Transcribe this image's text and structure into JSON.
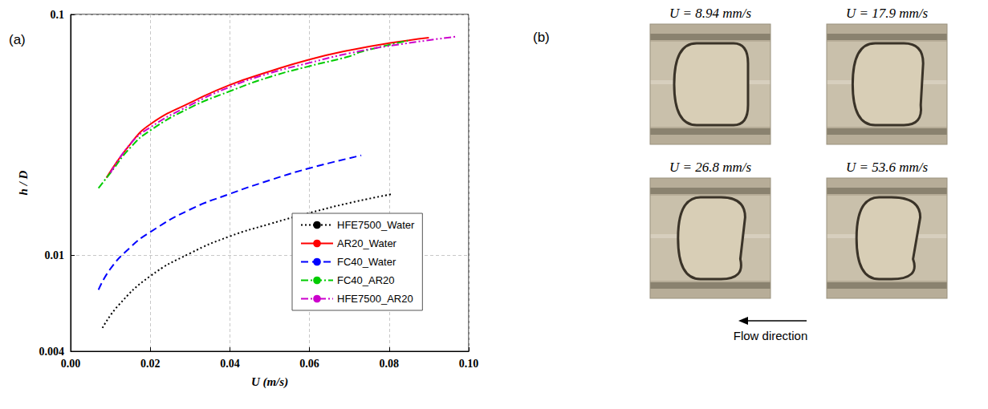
{
  "chart_data": {
    "type": "line",
    "title": "(a)",
    "x_label": "U (m/s)",
    "y_label": "h / D",
    "log": "y",
    "grid": true,
    "legend": "bottom-right",
    "xlim": [
      0,
      0.1
    ],
    "xticks": [
      {
        "value": 0,
        "label": "0.00"
      },
      {
        "value": 0.02,
        "label": "0.02"
      },
      {
        "value": 0.04,
        "label": "0.04"
      },
      {
        "value": 0.06,
        "label": "0.06"
      },
      {
        "value": 0.08,
        "label": "0.08"
      },
      {
        "value": 0.1,
        "label": "0.10"
      }
    ],
    "ylim": [
      0.004,
      0.1
    ],
    "yticks": [
      0.004,
      0.01,
      0.1
    ],
    "series": [
      {
        "name": "HFE7500_Water",
        "color": "#000000",
        "line_style": "dotted",
        "x": [
          0.008,
          0.012,
          0.02,
          0.03,
          0.04,
          0.05,
          0.06,
          0.07,
          0.081
        ],
        "values": [
          0.005,
          0.0062,
          0.0082,
          0.0102,
          0.012,
          0.0135,
          0.015,
          0.0165,
          0.018
        ]
      },
      {
        "name": "AR20_Water",
        "color": "#ff0000",
        "line_style": "solid",
        "x": [
          0.009,
          0.015,
          0.02,
          0.03,
          0.04,
          0.05,
          0.06,
          0.07,
          0.08,
          0.09
        ],
        "values": [
          0.021,
          0.029,
          0.035,
          0.043,
          0.051,
          0.058,
          0.065,
          0.071,
          0.076,
          0.08
        ]
      },
      {
        "name": "FC40_Water",
        "color": "#0000ff",
        "line_style": "dashed",
        "x": [
          0.007,
          0.01,
          0.015,
          0.02,
          0.03,
          0.04,
          0.05,
          0.06,
          0.073
        ],
        "values": [
          0.0072,
          0.0088,
          0.0108,
          0.0125,
          0.0155,
          0.018,
          0.0205,
          0.023,
          0.026
        ]
      },
      {
        "name": "FC40_AR20",
        "color": "#00cc00",
        "line_style": "dashdot",
        "x": [
          0.007,
          0.01,
          0.015,
          0.02,
          0.03,
          0.04,
          0.05,
          0.06,
          0.07,
          0.073,
          0.085
        ],
        "values": [
          0.019,
          0.022,
          0.028,
          0.033,
          0.041,
          0.048,
          0.055,
          0.061,
          0.067,
          0.07,
          0.078
        ]
      },
      {
        "name": "HFE7500_AR20",
        "color": "#cc00cc",
        "line_style": "dashdotdot",
        "x": [
          0.01,
          0.015,
          0.02,
          0.03,
          0.04,
          0.05,
          0.06,
          0.07,
          0.08,
          0.097
        ],
        "values": [
          0.022,
          0.029,
          0.034,
          0.042,
          0.05,
          0.057,
          0.063,
          0.069,
          0.074,
          0.081
        ]
      }
    ]
  },
  "image_panel": {
    "label": "(b)",
    "images": [
      {
        "caption": "U = 8.94 mm/s"
      },
      {
        "caption": "U = 17.9 mm/s"
      },
      {
        "caption": "U = 26.8 mm/s"
      },
      {
        "caption": "U = 53.6 mm/s"
      }
    ],
    "arrow_label": "Flow direction"
  }
}
